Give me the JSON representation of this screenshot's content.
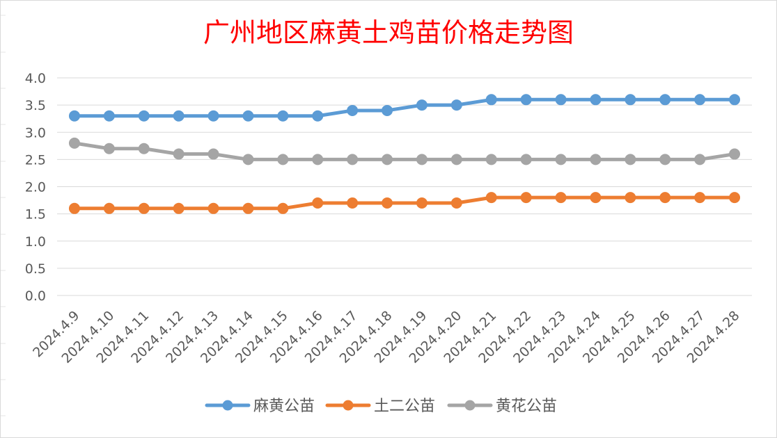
{
  "chart_data": {
    "type": "line",
    "title": "广州地区麻黄土鸡苗价格走势图",
    "categories": [
      "2024.4.9",
      "2024.4.10",
      "2024.4.11",
      "2024.4.12",
      "2024.4.13",
      "2024.4.14",
      "2024.4.15",
      "2024.4.16",
      "2024.4.17",
      "2024.4.18",
      "2024.4.19",
      "2024.4.20",
      "2024.4.21",
      "2024.4.22",
      "2024.4.23",
      "2024.4.24",
      "2024.4.25",
      "2024.4.26",
      "2024.4.27",
      "2024.4.28"
    ],
    "series": [
      {
        "name": "麻黄公苗",
        "color": "#5b9bd5",
        "values": [
          3.3,
          3.3,
          3.3,
          3.3,
          3.3,
          3.3,
          3.3,
          3.3,
          3.4,
          3.4,
          3.5,
          3.5,
          3.6,
          3.6,
          3.6,
          3.6,
          3.6,
          3.6,
          3.6,
          3.6
        ]
      },
      {
        "name": "土二公苗",
        "color": "#ed7d31",
        "values": [
          1.6,
          1.6,
          1.6,
          1.6,
          1.6,
          1.6,
          1.6,
          1.7,
          1.7,
          1.7,
          1.7,
          1.7,
          1.8,
          1.8,
          1.8,
          1.8,
          1.8,
          1.8,
          1.8,
          1.8
        ]
      },
      {
        "name": "黄花公苗",
        "color": "#a5a5a5",
        "values": [
          2.8,
          2.7,
          2.7,
          2.6,
          2.6,
          2.5,
          2.5,
          2.5,
          2.5,
          2.5,
          2.5,
          2.5,
          2.5,
          2.5,
          2.5,
          2.5,
          2.5,
          2.5,
          2.5,
          2.6
        ]
      }
    ],
    "y_ticks": [
      "0.0",
      "0.5",
      "1.0",
      "1.5",
      "2.0",
      "2.5",
      "3.0",
      "3.5",
      "4.0"
    ],
    "ylim": [
      0,
      4.0
    ],
    "xlabel": "",
    "ylabel": "",
    "grid": true,
    "legend_position": "bottom",
    "title_color": "#ff0000"
  }
}
